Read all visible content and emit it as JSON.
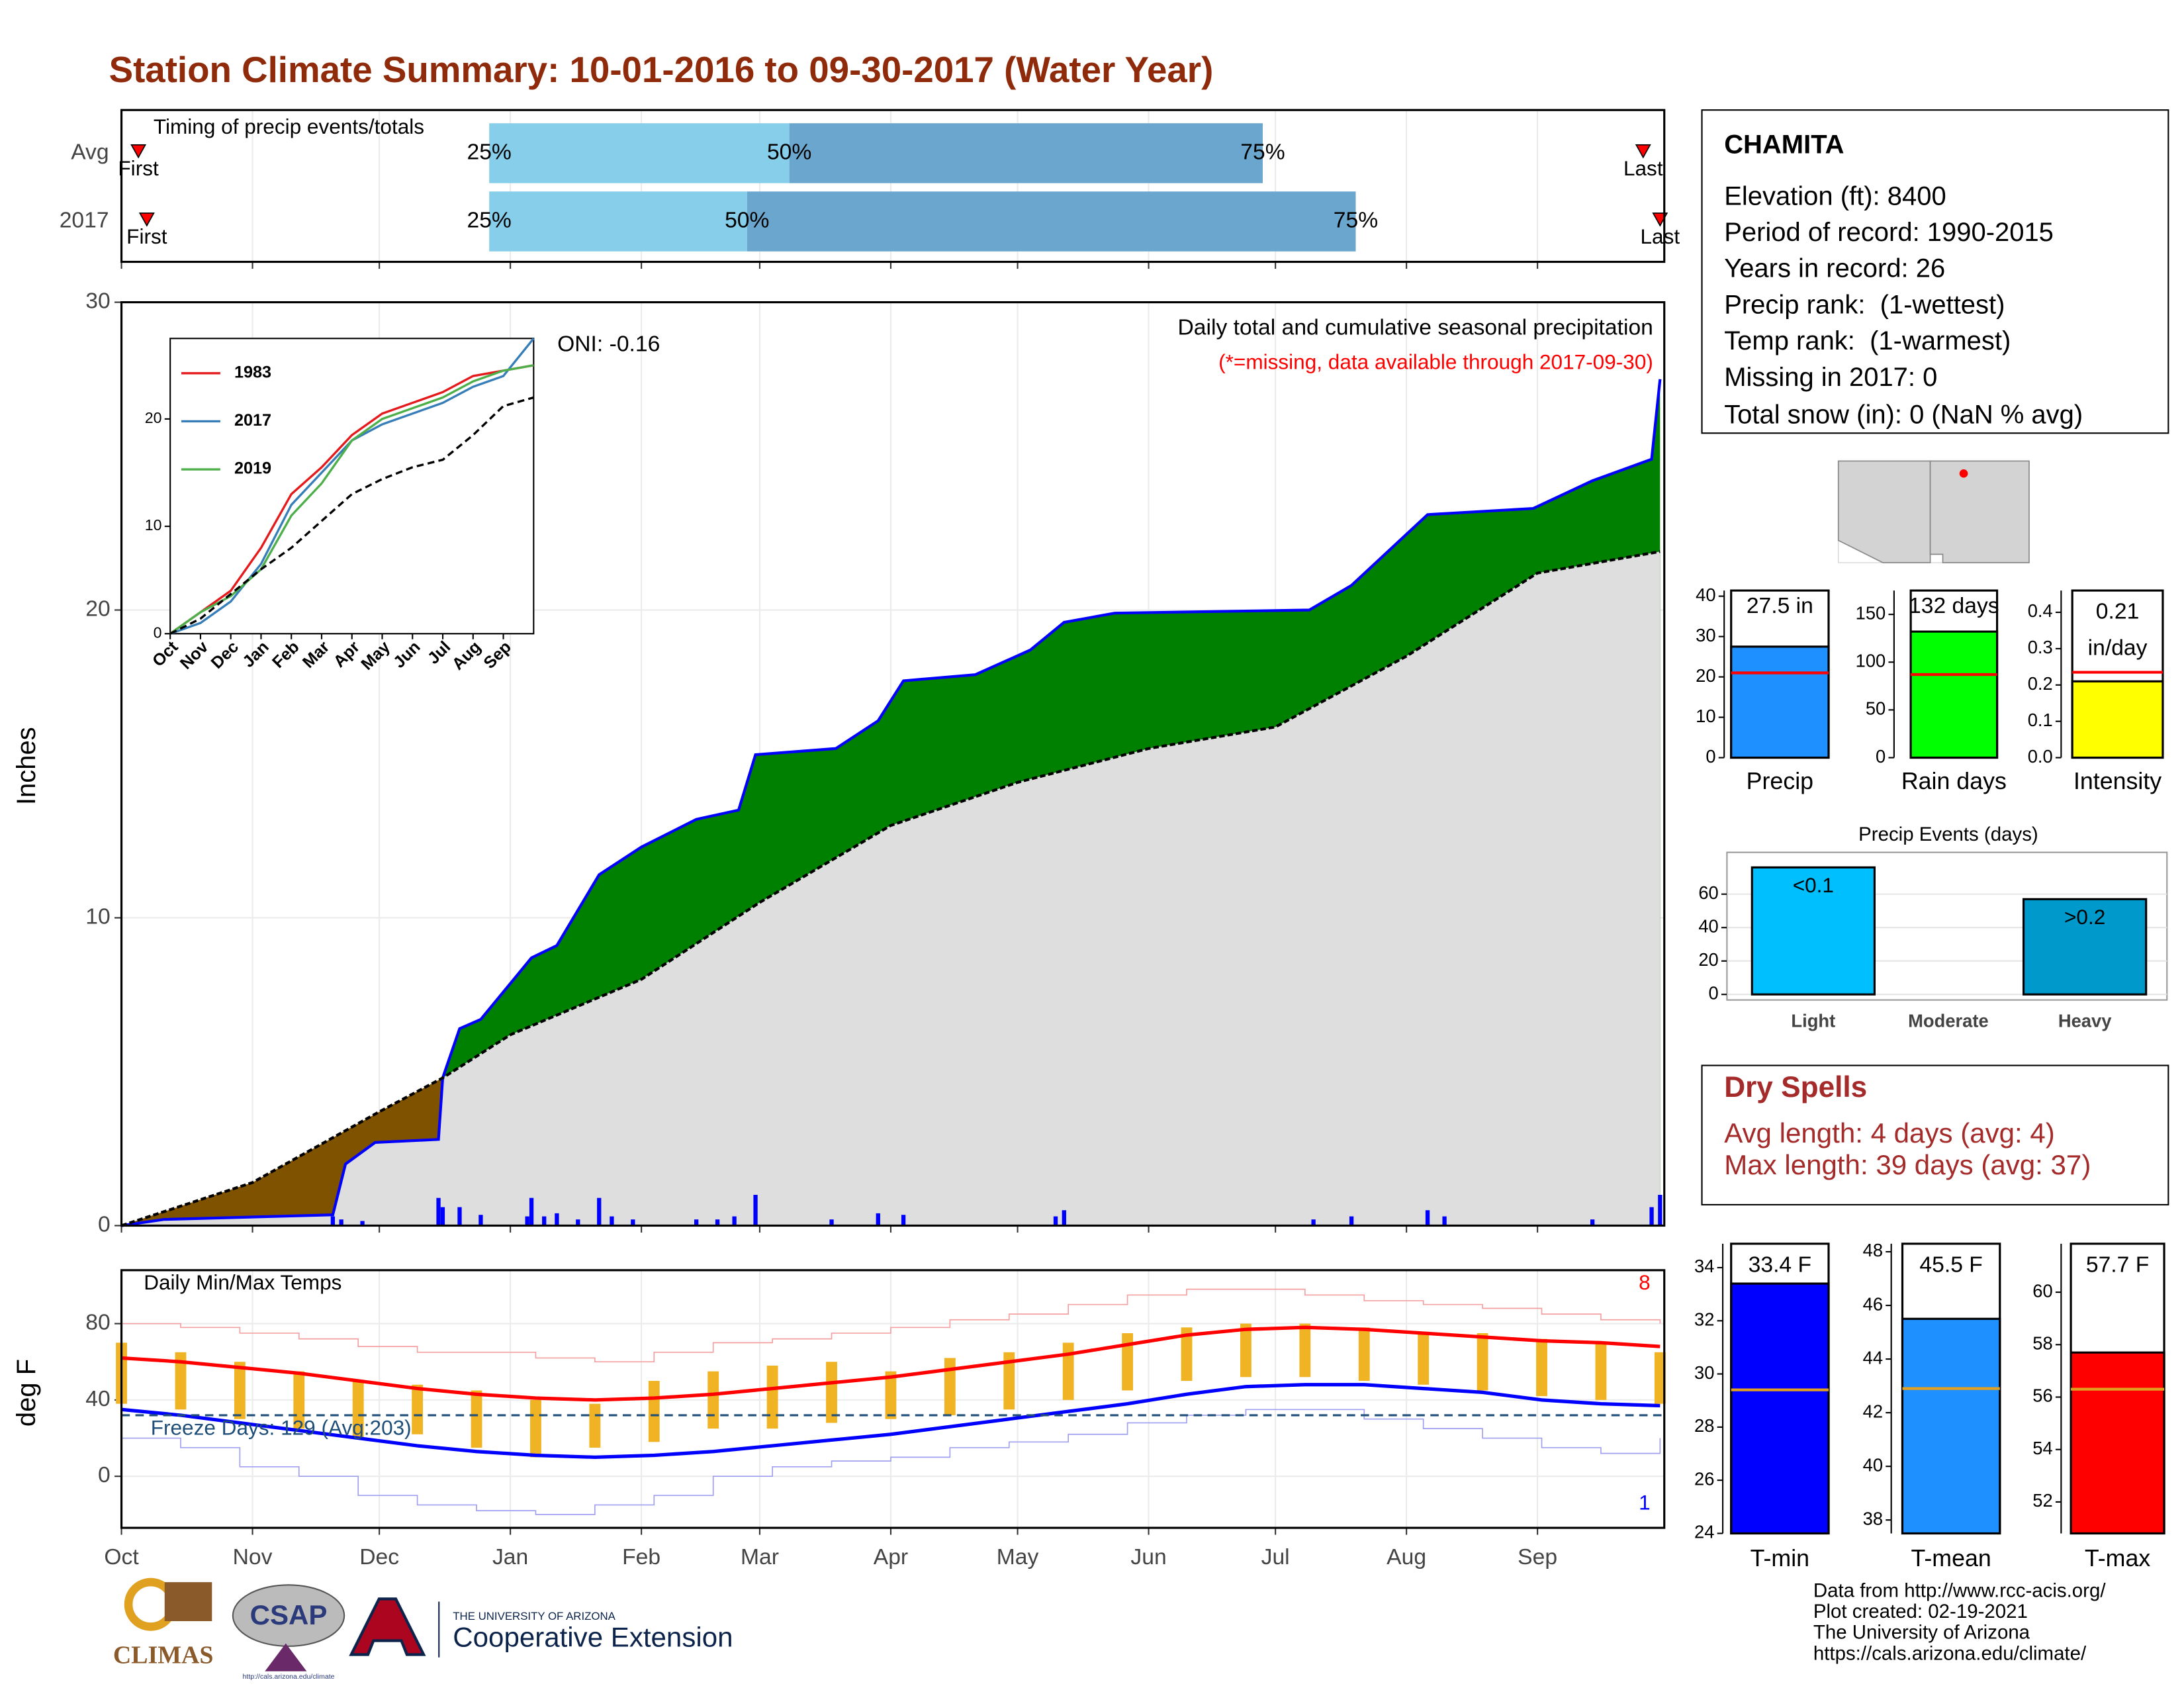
{
  "title": "Station Climate Summary: 10-01-2016 to 09-30-2017 (Water Year)",
  "chart_data": [
    {
      "type": "timing",
      "title": "Timing of precip events/totals",
      "categories": [
        "Avg",
        "2017"
      ],
      "labels": [
        "First",
        "25%",
        "50%",
        "75%",
        "Last"
      ],
      "first": [
        4,
        6
      ],
      "q25": [
        87,
        87
      ],
      "q50": [
        158,
        148
      ],
      "q75": [
        270,
        292
      ],
      "last": [
        360,
        364
      ],
      "xlim": [
        0,
        365
      ],
      "colors": [
        "#87ceeb",
        "#6aa6cd"
      ],
      "marker_color": "#ff0000"
    },
    {
      "type": "cumulative",
      "title": "Daily total and cumulative seasonal precipitation",
      "subtitle": "(*=missing, data available through 2017-09-30)",
      "annotation": "ONI: -0.16",
      "ylabel": "Inches",
      "xlim": [
        0,
        365
      ],
      "ylim": [
        0,
        30
      ],
      "yticks": [
        0,
        10,
        20,
        30
      ],
      "observed": {
        "color": "#0000ff",
        "x": [
          0,
          10,
          50,
          53,
          60,
          75,
          76,
          80,
          85,
          97,
          103,
          113,
          123,
          136,
          146,
          150,
          169,
          179,
          185,
          202,
          215,
          223,
          235,
          281,
          291,
          309,
          334,
          348,
          362,
          364
        ],
        "values": [
          0,
          0.2,
          0.35,
          2.0,
          2.7,
          2.8,
          4.8,
          6.4,
          6.7,
          8.7,
          9.1,
          11.4,
          12.3,
          13.2,
          13.5,
          15.3,
          15.5,
          16.4,
          17.7,
          17.9,
          18.7,
          19.6,
          19.9,
          20.0,
          20.8,
          23.1,
          23.3,
          24.2,
          24.9,
          27.5
        ]
      },
      "average": {
        "color": "#000000",
        "x": [
          0,
          31,
          61,
          76,
          92,
          123,
          151,
          182,
          212,
          243,
          273,
          304,
          335,
          364
        ],
        "values": [
          0,
          1.4,
          3.7,
          4.8,
          6.2,
          8.0,
          10.5,
          13.0,
          14.4,
          15.5,
          16.2,
          18.5,
          21.2,
          21.9
        ]
      },
      "daily": {
        "color": "#0000ff",
        "x": [
          50,
          52,
          57,
          75,
          76,
          80,
          85,
          96,
          97,
          100,
          103,
          108,
          113,
          116,
          121,
          136,
          141,
          145,
          150,
          168,
          179,
          185,
          221,
          223,
          282,
          291,
          309,
          313,
          348,
          362,
          364
        ],
        "values": [
          0.3,
          0.2,
          0.15,
          0.9,
          0.6,
          0.6,
          0.35,
          0.3,
          0.9,
          0.3,
          0.4,
          0.2,
          0.9,
          0.3,
          0.2,
          0.2,
          0.2,
          0.3,
          1.0,
          0.2,
          0.4,
          0.35,
          0.3,
          0.5,
          0.2,
          0.3,
          0.5,
          0.3,
          0.2,
          0.6,
          1.0
        ]
      },
      "above_color": "#008000",
      "below_color": "#7f5200",
      "base_color": "#dedede"
    },
    {
      "type": "line",
      "xlim": [
        0,
        12
      ],
      "ylim": [
        0,
        27.5
      ],
      "yticks": [
        0,
        10,
        20
      ],
      "x": [
        0,
        1,
        2,
        3,
        4,
        5,
        6,
        7,
        8,
        9,
        10,
        11,
        12
      ],
      "xticks": [
        {
          "value": 0,
          "label": "Oct"
        },
        {
          "value": 1,
          "label": "Nov"
        },
        {
          "value": 2,
          "label": "Dec"
        },
        {
          "value": 3,
          "label": "Jan"
        },
        {
          "value": 4,
          "label": "Feb"
        },
        {
          "value": 5,
          "label": "Mar"
        },
        {
          "value": 6,
          "label": "Apr"
        },
        {
          "value": 7,
          "label": "May"
        },
        {
          "value": 8,
          "label": "Jun"
        },
        {
          "value": 9,
          "label": "Jul"
        },
        {
          "value": 10,
          "label": "Aug"
        },
        {
          "value": 11,
          "label": "Sep"
        }
      ],
      "series": [
        {
          "name": "1983",
          "color": "#e41a1c",
          "values": [
            0,
            2,
            4,
            8,
            13,
            15.5,
            18.5,
            20.5,
            21.5,
            22.5,
            24,
            24.5,
            25
          ]
        },
        {
          "name": "2017",
          "color": "#377eb8",
          "values": [
            0,
            1,
            3,
            6.5,
            12,
            15,
            18,
            19.5,
            20.5,
            21.5,
            23,
            24,
            27.5
          ]
        },
        {
          "name": "2019",
          "color": "#4daf4a",
          "values": [
            0,
            2,
            3.5,
            6,
            11,
            14,
            18,
            20,
            21,
            22,
            23.5,
            24.5,
            25
          ]
        },
        {
          "color": "#000000",
          "dash": true,
          "values": [
            0,
            1.4,
            3.7,
            6,
            8,
            10.5,
            13,
            14.4,
            15.5,
            16.2,
            18.5,
            21.2,
            22
          ]
        }
      ]
    },
    {
      "type": "temps",
      "title": "Daily Min/Max Temps",
      "ylabel": "deg F",
      "xlim": [
        0,
        365
      ],
      "ylim": [
        -27,
        108
      ],
      "yticks": [
        0,
        40,
        80
      ],
      "xticks": [
        {
          "value": 0,
          "label": "Oct"
        },
        {
          "value": 31,
          "label": "Nov"
        },
        {
          "value": 61,
          "label": "Dec"
        },
        {
          "value": 92,
          "label": "Jan"
        },
        {
          "value": 123,
          "label": "Feb"
        },
        {
          "value": 151,
          "label": "Mar"
        },
        {
          "value": 182,
          "label": "Apr"
        },
        {
          "value": 212,
          "label": "May"
        },
        {
          "value": 243,
          "label": "Jun"
        },
        {
          "value": 273,
          "label": "Jul"
        },
        {
          "value": 304,
          "label": "Aug"
        },
        {
          "value": 335,
          "label": "Sep"
        }
      ],
      "x": [
        0,
        14,
        28,
        42,
        56,
        70,
        84,
        98,
        112,
        126,
        140,
        154,
        168,
        182,
        196,
        210,
        224,
        238,
        252,
        266,
        280,
        294,
        308,
        322,
        336,
        350,
        364
      ],
      "record_high": {
        "color": "#f4a0a0",
        "values": [
          80,
          78,
          75,
          72,
          68,
          65,
          65,
          62,
          60,
          65,
          70,
          72,
          75,
          78,
          82,
          85,
          90,
          95,
          98,
          98,
          95,
          92,
          90,
          88,
          85,
          82,
          80
        ]
      },
      "avg_high": {
        "color": "#ff0000",
        "values": [
          62,
          60,
          57,
          54,
          50,
          46,
          43,
          41,
          40,
          41,
          43,
          46,
          49,
          52,
          56,
          60,
          64,
          69,
          74,
          77,
          78,
          77,
          75,
          73,
          71,
          70,
          68
        ]
      },
      "obs_high": {
        "color": "#f0b323",
        "values": [
          70,
          65,
          60,
          55,
          50,
          48,
          45,
          40,
          38,
          50,
          55,
          58,
          60,
          55,
          62,
          65,
          70,
          75,
          78,
          80,
          80,
          78,
          75,
          75,
          72,
          70,
          65
        ]
      },
      "obs_low": {
        "color": "#f0b323",
        "values": [
          38,
          35,
          30,
          25,
          20,
          22,
          15,
          10,
          15,
          18,
          25,
          25,
          28,
          30,
          32,
          35,
          40,
          45,
          50,
          52,
          52,
          50,
          48,
          45,
          42,
          40,
          38
        ]
      },
      "avg_low": {
        "color": "#0000ff",
        "values": [
          35,
          32,
          28,
          24,
          20,
          16,
          13,
          11,
          10,
          11,
          13,
          16,
          19,
          22,
          26,
          30,
          34,
          38,
          43,
          47,
          48,
          48,
          46,
          44,
          40,
          38,
          37
        ]
      },
      "record_low": {
        "color": "#a0a0f0",
        "values": [
          20,
          15,
          5,
          0,
          -10,
          -15,
          -18,
          -20,
          -15,
          -10,
          0,
          5,
          8,
          10,
          15,
          18,
          22,
          28,
          32,
          35,
          35,
          30,
          25,
          20,
          15,
          12,
          20
        ]
      },
      "freeze": 32,
      "freeze_color": "#1f4e79",
      "freeze_label": "Freeze Days: 129 (Avg:203)",
      "record_high_count": 8,
      "record_low_count": 1
    },
    {
      "type": "bar",
      "categories": [
        "Precip"
      ],
      "values": [
        27.5
      ],
      "value_labels": [
        "27.5 in"
      ],
      "reference": 21,
      "reference_color": "#ff0000",
      "color": "#1e90ff",
      "ylim": [
        0,
        41.4
      ],
      "yticks": [
        0,
        10,
        20,
        30,
        40
      ]
    },
    {
      "type": "bar",
      "categories": [
        "Rain days"
      ],
      "values": [
        132
      ],
      "value_labels": [
        "132 days"
      ],
      "reference": 87,
      "reference_color": "#ff0000",
      "color": "#00ff00",
      "ylim": [
        0,
        175
      ],
      "yticks": [
        0,
        50,
        100,
        150
      ]
    },
    {
      "type": "bar",
      "categories": [
        "Intensity"
      ],
      "values": [
        0.21
      ],
      "value_labels": [
        "0.21"
      ],
      "unit": "in/day",
      "reference": 0.235,
      "reference_color": "#ff0000",
      "color": "#ffff00",
      "ylim": [
        0,
        0.46
      ],
      "yticks": [
        {
          "value": 0,
          "label": "0.0"
        },
        0.1,
        0.2,
        0.3,
        0.4
      ]
    },
    {
      "type": "bar",
      "title": "Precip Events (days)",
      "categories": [
        "Light",
        "Moderate",
        "Heavy"
      ],
      "values": [
        76,
        0,
        57
      ],
      "bar_labels": [
        "<0.1",
        null,
        ">0.2"
      ],
      "colors": [
        "#00bfff",
        "#00bfff",
        "#0099cc"
      ],
      "ylim": [
        0,
        85
      ],
      "yticks": [
        0,
        20,
        40,
        60
      ],
      "grid": true
    },
    {
      "type": "bar",
      "categories": [
        "T-min"
      ],
      "values": [
        33.4
      ],
      "value_labels": [
        "33.4 F"
      ],
      "reference": 29.4,
      "reference_color": "#e0a020",
      "color": "#0000ff",
      "ylim": [
        24,
        34.9
      ],
      "yticks": [
        24,
        26,
        28,
        30,
        32,
        34
      ]
    },
    {
      "type": "bar",
      "categories": [
        "T-mean"
      ],
      "values": [
        45.5
      ],
      "value_labels": [
        "45.5 F"
      ],
      "reference": 42.9,
      "reference_color": "#e0a020",
      "color": "#1e90ff",
      "ylim": [
        37.5,
        48.3
      ],
      "yticks": [
        38,
        40,
        42,
        44,
        46,
        48
      ]
    },
    {
      "type": "bar",
      "categories": [
        "T-max"
      ],
      "values": [
        57.7
      ],
      "value_labels": [
        "57.7 F"
      ],
      "reference": 56.3,
      "reference_color": "#e0a020",
      "color": "#ff0000",
      "ylim": [
        50.8,
        61.85
      ],
      "yticks": [
        52,
        54,
        56,
        58,
        60
      ]
    }
  ],
  "station": {
    "name": "CHAMITA",
    "lines": [
      "Elevation (ft): 8400",
      "Period of record: 1990-2015",
      "Years in record: 26",
      "Precip rank:  (1-wettest)",
      "Temp rank:  (1-warmest)",
      "Missing in 2017: 0",
      "Total snow (in): 0 (NaN % avg)"
    ]
  },
  "dry_spells": {
    "title": "Dry Spells",
    "lines": [
      "Avg length: 4 days (avg: 4)",
      "Max length: 39 days (avg: 37)"
    ]
  },
  "footer": {
    "logos": [
      "CLIMAS",
      "CSAP",
      "http://cals.arizona.edu/climate",
      "THE UNIVERSITY OF ARIZONA",
      "Cooperative Extension"
    ],
    "credits": [
      "Data from http://www.rcc-acis.org/",
      "Plot created: 02-19-2021",
      "The University of Arizona",
      "https://cals.arizona.edu/climate/"
    ]
  }
}
